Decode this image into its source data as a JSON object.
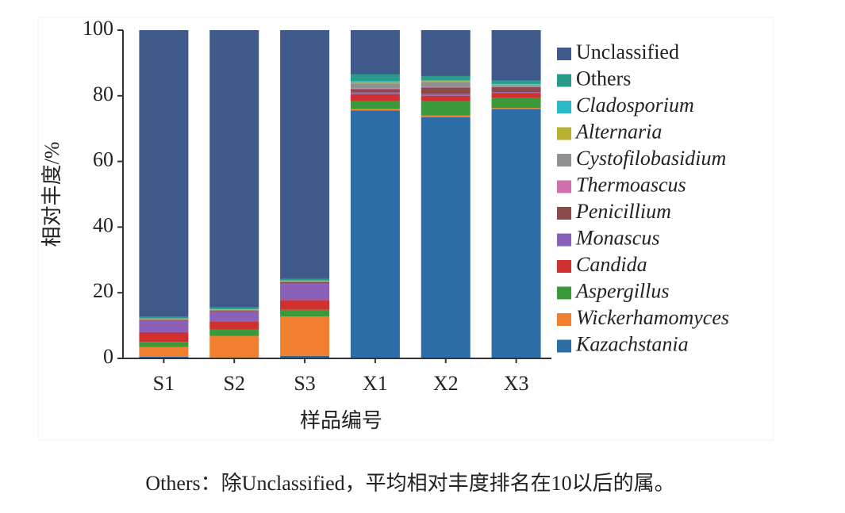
{
  "chart_data": {
    "type": "stacked-bar",
    "xlabel": "样品编号",
    "ylabel": "相对丰度/%",
    "categories": [
      "S1",
      "S2",
      "S3",
      "X1",
      "X2",
      "X3"
    ],
    "ylim": [
      0,
      100
    ],
    "yticks": [
      0,
      20,
      40,
      60,
      80,
      100
    ],
    "series": [
      {
        "name": "Kazachstania",
        "color": "#2e6ea8",
        "italic": true,
        "values": [
          0.5,
          0.3,
          0.8,
          75.5,
          73.5,
          76
        ]
      },
      {
        "name": "Wickerhamomyces",
        "color": "#f08030",
        "italic": true,
        "values": [
          3,
          6.5,
          12,
          0.5,
          0.5,
          0.3
        ]
      },
      {
        "name": "Aspergillus",
        "color": "#3a9a3a",
        "italic": true,
        "values": [
          1.5,
          2,
          2,
          2.5,
          4.5,
          3
        ]
      },
      {
        "name": "Candida",
        "color": "#d03030",
        "italic": true,
        "values": [
          3,
          2.5,
          3,
          2,
          1.5,
          1.5
        ]
      },
      {
        "name": "Monascus",
        "color": "#8a60b8",
        "italic": true,
        "values": [
          3.5,
          3,
          5,
          0.5,
          0.5,
          0.3
        ]
      },
      {
        "name": "Penicillium",
        "color": "#8a4a4a",
        "italic": true,
        "values": [
          0.3,
          0.3,
          0.5,
          1,
          2,
          1.5
        ]
      },
      {
        "name": "Thermoascus",
        "color": "#d070b0",
        "italic": true,
        "values": [
          0.1,
          0.1,
          0.1,
          0.2,
          0.2,
          0.1
        ]
      },
      {
        "name": "Cystofilobasidium",
        "color": "#909090",
        "italic": true,
        "values": [
          0.1,
          0.1,
          0.1,
          1.5,
          1.5,
          0.5
        ]
      },
      {
        "name": "Alternaria",
        "color": "#b8b030",
        "italic": true,
        "values": [
          0.1,
          0.1,
          0.1,
          0.3,
          0.3,
          0.2
        ]
      },
      {
        "name": "Cladosporium",
        "color": "#28b8c8",
        "italic": true,
        "values": [
          0.1,
          0.1,
          0.1,
          0.5,
          0.3,
          0.2
        ]
      },
      {
        "name": "Others",
        "color": "#2a9a8a",
        "italic": false,
        "values": [
          0.5,
          0.5,
          0.5,
          2,
          1.2,
          1
        ]
      },
      {
        "name": "Unclassified",
        "color": "#3f5a8a",
        "italic": false,
        "values": [
          87.3,
          84.5,
          75.8,
          13.5,
          14,
          15.4
        ]
      }
    ],
    "note": "Others：除Unclassified，平均相对丰度排名在10以后的属。"
  }
}
